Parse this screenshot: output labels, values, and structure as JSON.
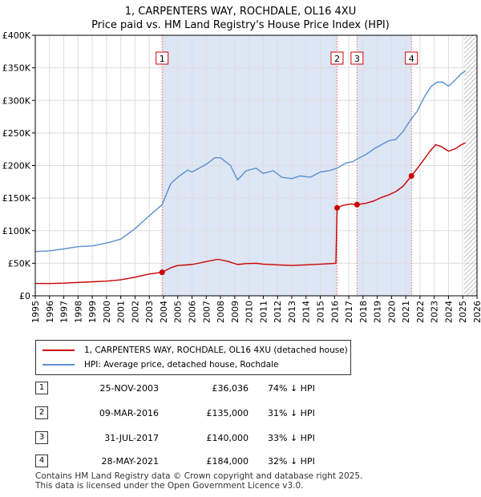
{
  "chart_data": {
    "type": "line",
    "title": "1, CARPENTERS WAY, ROCHDALE, OL16 4XU",
    "subtitle": "Price paid vs. HM Land Registry's House Price Index (HPI)",
    "xlim": [
      1995,
      2026
    ],
    "ylim": [
      0,
      400000
    ],
    "x_ticks": [
      "1995",
      "1996",
      "1997",
      "1998",
      "1999",
      "2000",
      "2001",
      "2002",
      "2003",
      "2004",
      "2005",
      "2006",
      "2007",
      "2008",
      "2009",
      "2010",
      "2011",
      "2012",
      "2013",
      "2014",
      "2015",
      "2016",
      "2017",
      "2018",
      "2019",
      "2020",
      "2021",
      "2022",
      "2023",
      "2024",
      "2025",
      "2026"
    ],
    "y_ticks": [
      {
        "value": 0,
        "label": "£0"
      },
      {
        "value": 50000,
        "label": "£50K"
      },
      {
        "value": 100000,
        "label": "£100K"
      },
      {
        "value": 150000,
        "label": "£150K"
      },
      {
        "value": 200000,
        "label": "£200K"
      },
      {
        "value": 250000,
        "label": "£250K"
      },
      {
        "value": 300000,
        "label": "£300K"
      },
      {
        "value": 350000,
        "label": "£350K"
      },
      {
        "value": 400000,
        "label": "£400K"
      }
    ],
    "colors": {
      "property": "#cc0000",
      "hpi": "#5b8fcf",
      "band": "#dde6f5",
      "vline": "#e06666",
      "grid": "#dddddd",
      "hatch": "#999999"
    },
    "shaded_ranges": [
      [
        2003.9,
        2016.18
      ],
      [
        2017.58,
        2021.4
      ]
    ],
    "hatch_from": 2025.1,
    "series": [
      {
        "name": "1, CARPENTERS WAY, ROCHDALE, OL16 4XU (detached house)",
        "key": "property",
        "points": [
          [
            1995,
            19000
          ],
          [
            1996,
            18800
          ],
          [
            1997,
            19400
          ],
          [
            1998,
            20500
          ],
          [
            1999,
            21500
          ],
          [
            2000,
            22500
          ],
          [
            2001,
            24500
          ],
          [
            2002,
            28500
          ],
          [
            2003,
            33500
          ],
          [
            2003.9,
            36036
          ],
          [
            2004.5,
            43000
          ],
          [
            2005,
            46500
          ],
          [
            2006,
            48000
          ],
          [
            2007,
            52500
          ],
          [
            2007.8,
            56000
          ],
          [
            2008.5,
            53000
          ],
          [
            2009.2,
            48000
          ],
          [
            2009.8,
            49500
          ],
          [
            2010.5,
            50000
          ],
          [
            2011,
            48500
          ],
          [
            2012,
            47500
          ],
          [
            2013,
            46500
          ],
          [
            2014,
            47500
          ],
          [
            2015,
            48500
          ],
          [
            2016.1,
            50000
          ],
          [
            2016.18,
            135000
          ],
          [
            2016.6,
            139000
          ],
          [
            2017.2,
            141000
          ],
          [
            2017.58,
            140000
          ],
          [
            2018.2,
            142000
          ],
          [
            2018.8,
            146000
          ],
          [
            2019.3,
            151000
          ],
          [
            2019.8,
            155000
          ],
          [
            2020.3,
            160000
          ],
          [
            2020.8,
            168000
          ],
          [
            2021.4,
            184000
          ],
          [
            2021.9,
            198000
          ],
          [
            2022.3,
            210000
          ],
          [
            2022.7,
            222000
          ],
          [
            2023.1,
            232000
          ],
          [
            2023.5,
            229000
          ],
          [
            2024,
            222000
          ],
          [
            2024.5,
            226000
          ],
          [
            2024.9,
            232000
          ],
          [
            2025.2,
            235000
          ]
        ]
      },
      {
        "name": "HPI: Average price, detached house, Rochdale",
        "key": "hpi",
        "points": [
          [
            1995,
            68000
          ],
          [
            1996,
            69000
          ],
          [
            1997,
            72000
          ],
          [
            1998,
            75500
          ],
          [
            1999,
            76500
          ],
          [
            2000,
            81000
          ],
          [
            2001,
            87000
          ],
          [
            2002,
            103000
          ],
          [
            2003,
            123000
          ],
          [
            2003.9,
            140000
          ],
          [
            2004.5,
            172000
          ],
          [
            2005,
            182000
          ],
          [
            2005.7,
            193000
          ],
          [
            2006,
            190000
          ],
          [
            2007,
            202000
          ],
          [
            2007.6,
            212000
          ],
          [
            2008,
            212000
          ],
          [
            2008.7,
            200000
          ],
          [
            2009.2,
            178000
          ],
          [
            2009.8,
            192000
          ],
          [
            2010.5,
            196000
          ],
          [
            2011,
            188000
          ],
          [
            2011.7,
            192000
          ],
          [
            2012.3,
            182000
          ],
          [
            2013,
            180000
          ],
          [
            2013.6,
            184000
          ],
          [
            2014.3,
            182000
          ],
          [
            2015,
            190000
          ],
          [
            2015.6,
            192000
          ],
          [
            2016.18,
            196000
          ],
          [
            2016.8,
            204000
          ],
          [
            2017.3,
            206000
          ],
          [
            2017.58,
            210000
          ],
          [
            2018.2,
            217000
          ],
          [
            2018.8,
            226000
          ],
          [
            2019.3,
            232000
          ],
          [
            2019.8,
            238000
          ],
          [
            2020.3,
            240000
          ],
          [
            2020.8,
            252000
          ],
          [
            2021.4,
            272000
          ],
          [
            2021.8,
            283000
          ],
          [
            2022.3,
            305000
          ],
          [
            2022.8,
            322000
          ],
          [
            2023.2,
            328000
          ],
          [
            2023.6,
            328000
          ],
          [
            2024,
            322000
          ],
          [
            2024.5,
            332000
          ],
          [
            2024.9,
            341000
          ],
          [
            2025.2,
            345000
          ]
        ]
      }
    ],
    "sale_markers": [
      {
        "label": "1",
        "x": 2003.9,
        "y": 36036
      },
      {
        "label": "2",
        "x": 2016.18,
        "y": 135000
      },
      {
        "label": "3",
        "x": 2017.58,
        "y": 140000
      },
      {
        "label": "4",
        "x": 2021.4,
        "y": 184000
      }
    ]
  },
  "legend": {
    "property_label": "1, CARPENTERS WAY, ROCHDALE, OL16 4XU (detached house)",
    "hpi_label": "HPI: Average price, detached house, Rochdale"
  },
  "sales": [
    {
      "num": "1",
      "date": "25-NOV-2003",
      "price": "£36,036",
      "hpi": "74% ↓ HPI"
    },
    {
      "num": "2",
      "date": "09-MAR-2016",
      "price": "£135,000",
      "hpi": "31% ↓ HPI"
    },
    {
      "num": "3",
      "date": "31-JUL-2017",
      "price": "£140,000",
      "hpi": "33% ↓ HPI"
    },
    {
      "num": "4",
      "date": "28-MAY-2021",
      "price": "£184,000",
      "hpi": "32% ↓ HPI"
    }
  ],
  "footer": {
    "line1": "Contains HM Land Registry data © Crown copyright and database right 2025.",
    "line2": "This data is licensed under the Open Government Licence v3.0."
  }
}
